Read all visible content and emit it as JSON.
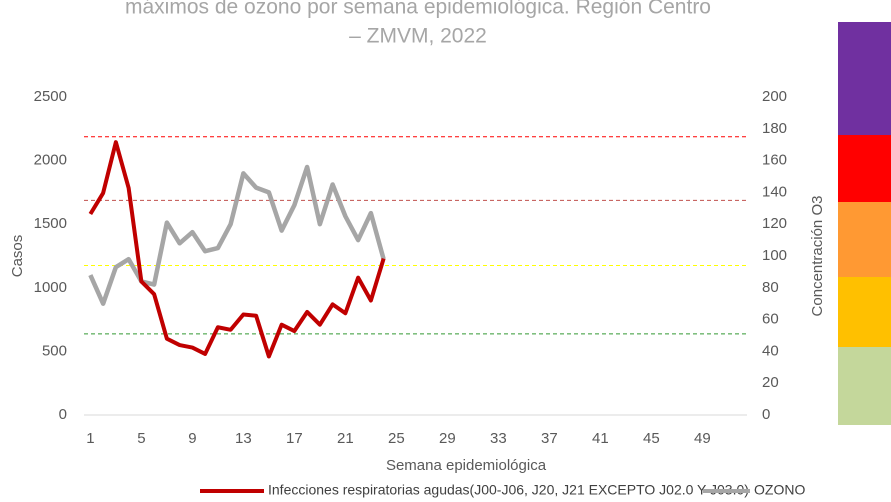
{
  "chart_data": {
    "type": "line",
    "title": [
      "máximos de ozono por semana epidemiológica. Región Centro",
      "– ZMVM, 2022"
    ],
    "x_label": "Semana epidemiológica",
    "y_label": "Casos",
    "y2_label": "Concentración O3",
    "categories": [
      1,
      null,
      null,
      null,
      5,
      null,
      null,
      null,
      9,
      null,
      null,
      null,
      13,
      null,
      null,
      null,
      17,
      null,
      null,
      null,
      21,
      null,
      null,
      null,
      25,
      null,
      null,
      null,
      29,
      null,
      null,
      null,
      33,
      null,
      null,
      null,
      37,
      null,
      null,
      null,
      41,
      null,
      null,
      null,
      45,
      null,
      null,
      null,
      49,
      null,
      null,
      null
    ],
    "ylim": [
      0,
      2500
    ],
    "yticks": [
      0,
      500,
      1000,
      1500,
      2000,
      2500
    ],
    "y2lim": [
      0,
      200
    ],
    "y2ticks": [
      0,
      20,
      40,
      60,
      80,
      100,
      120,
      140,
      160,
      180,
      200
    ],
    "series": [
      {
        "name": "Infecciones respiratorias agudas(J00-J06, J20, J21 EXCEPTO J02.0 Y J03.0)",
        "color": "#c00000",
        "width": 4,
        "values": [
          1580,
          1745,
          2145,
          1785,
          1050,
          950,
          600,
          550,
          530,
          480,
          690,
          670,
          790,
          780,
          460,
          710,
          660,
          810,
          710,
          870,
          800,
          1080,
          900,
          1230,
          null,
          null,
          null,
          null,
          null,
          null,
          null,
          null,
          null,
          null,
          null,
          null,
          null,
          null,
          null,
          null,
          null,
          null,
          null,
          null,
          null,
          null,
          null,
          null,
          null,
          null,
          null,
          null
        ]
      },
      {
        "name": "OZONO",
        "color": "#a6a6a6",
        "width": 4.5,
        "axis": "y2",
        "values": [
          88,
          70,
          93,
          98,
          84,
          82,
          121,
          108,
          115,
          103,
          105,
          120,
          152,
          143,
          140,
          116,
          132,
          156,
          120,
          145,
          125,
          110,
          127,
          98,
          null,
          null,
          null,
          null,
          null,
          null,
          null,
          null,
          null,
          null,
          null,
          null,
          null,
          null,
          null,
          null,
          null,
          null,
          null,
          null,
          null,
          null,
          null,
          null,
          null,
          null,
          null,
          null
        ]
      }
    ],
    "reference_lines": [
      {
        "value": 175,
        "color": "#ff0000"
      },
      {
        "value": 135,
        "color": "#c0504d"
      },
      {
        "value": 94,
        "color": "#ffff00"
      },
      {
        "value": 51,
        "color": "#339933"
      }
    ]
  }
}
